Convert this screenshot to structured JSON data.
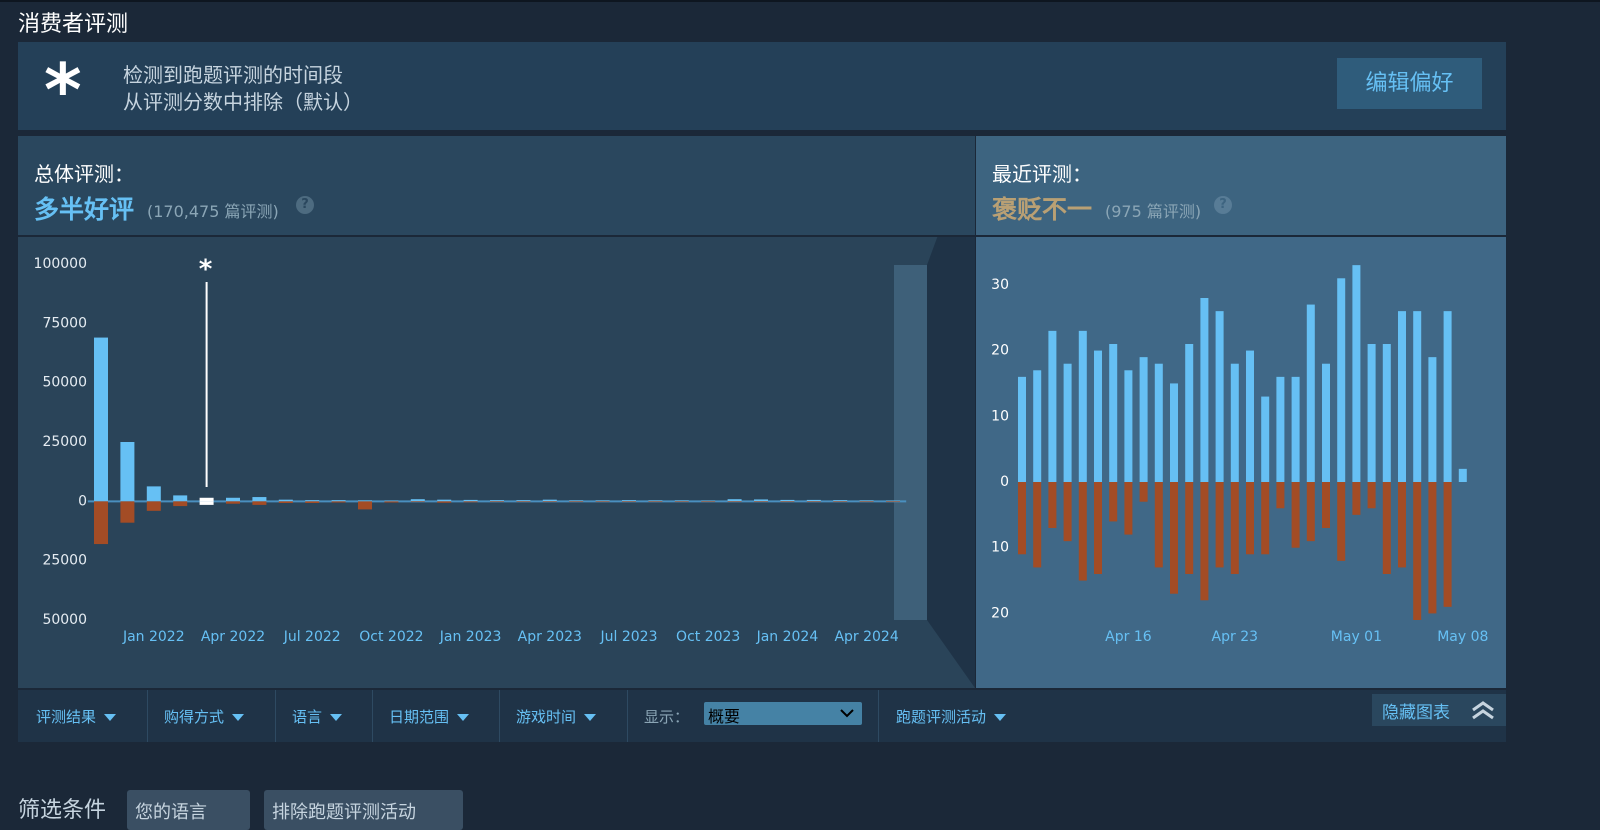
{
  "header": {
    "title": "消费者评测"
  },
  "banner": {
    "icon": "*",
    "lines": [
      "检测到跑题评测的时间段",
      "从评测分数中排除（默认）"
    ],
    "button": "编辑偏好"
  },
  "summaries": [
    {
      "label": "总体评测：",
      "rating": "多半好评",
      "count": "(170,475 篇评测)",
      "help": "?"
    },
    {
      "label": "最近评测：",
      "rating": "褒贬不一",
      "count": "(975 篇评测)",
      "help": "?"
    }
  ],
  "chart_data": [
    {
      "type": "bar",
      "categories": [
        null,
        null,
        "Jan 2022",
        null,
        null,
        "Apr 2022",
        null,
        null,
        "Jul 2022",
        null,
        null,
        "Oct 2022",
        null,
        null,
        "Jan 2023",
        null,
        null,
        "Apr 2023",
        null,
        null,
        "Jul 2023",
        null,
        null,
        "Oct 2023",
        null,
        null,
        "Jan 2024",
        null,
        null,
        "Apr 2024",
        null
      ],
      "series": [
        {
          "color": "#66c0f4",
          "values": [
            69000,
            25000,
            6300,
            2500,
            1500,
            1500,
            1800,
            700,
            500,
            500,
            400,
            300,
            900,
            700,
            600,
            500,
            500,
            700,
            400,
            400,
            500,
            400,
            400,
            300,
            900,
            800,
            600,
            600,
            500,
            400,
            300
          ]
        },
        {
          "color": "#a34c25",
          "values": [
            -18000,
            -9000,
            -4000,
            -2000,
            -1500,
            -1000,
            -1500,
            -700,
            -700,
            -500,
            -3400,
            -500,
            -300,
            -600,
            -400,
            -300,
            -300,
            -300,
            -300,
            -300,
            -300,
            -300,
            -300,
            -300,
            -300,
            -300,
            -300,
            -300,
            -300,
            -300,
            -300
          ]
        }
      ],
      "highlight": {
        "index": 4,
        "label": "*",
        "color": "#ffffff"
      },
      "ylim": [
        -50000,
        100000
      ],
      "yticks": [
        100000,
        75000,
        50000,
        25000,
        0,
        {
          "value": -25000,
          "label": "25000"
        },
        {
          "value": -50000,
          "label": "50000"
        }
      ],
      "zero_line_color": "#4a8fbf"
    },
    {
      "type": "bar",
      "categories": [
        null,
        null,
        null,
        null,
        null,
        null,
        null,
        "Apr 16",
        null,
        null,
        null,
        null,
        null,
        null,
        "Apr 23",
        null,
        null,
        null,
        null,
        null,
        null,
        null,
        "May 01",
        null,
        null,
        null,
        null,
        null,
        null,
        "May 08"
      ],
      "series": [
        {
          "color": "#66c0f4",
          "values": [
            16,
            17,
            23,
            18,
            23,
            20,
            21,
            17,
            19,
            18,
            15,
            21,
            28,
            26,
            18,
            20,
            13,
            16,
            16,
            27,
            18,
            31,
            33,
            21,
            21,
            26,
            26,
            19,
            26,
            2
          ]
        },
        {
          "color": "#a34c25",
          "values": [
            -11,
            -13,
            -7,
            -9,
            -15,
            -14,
            -6,
            -8,
            -3,
            -13,
            -17,
            -14,
            -18,
            -13,
            -14,
            -11,
            -11,
            -4,
            -10,
            -9,
            -7,
            -12,
            -5,
            -4,
            -14,
            -13,
            -21,
            -20,
            -19,
            0
          ]
        }
      ],
      "ylim": [
        -21,
        35
      ],
      "yticks": [
        30,
        20,
        10,
        0,
        {
          "value": -10,
          "label": "10"
        },
        {
          "value": -20,
          "label": "20"
        }
      ]
    }
  ],
  "filters": {
    "items": [
      "评测结果",
      "购得方式",
      "语言",
      "日期范围",
      "游戏时间"
    ],
    "display_label": "显示：",
    "display_value": "概要",
    "offtopic": "跑题评测活动",
    "hide_button": "隐藏图表"
  },
  "active_filters": {
    "label": "筛选条件",
    "chips": [
      "您的语言",
      "排除跑题评测活动"
    ]
  }
}
